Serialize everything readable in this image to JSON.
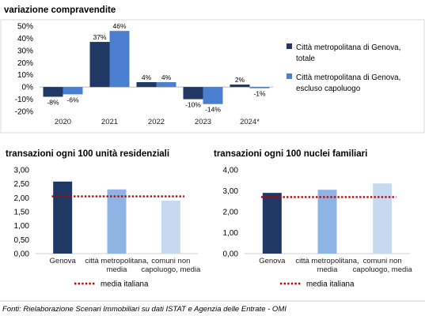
{
  "chart_data": [
    {
      "type": "bar",
      "title": "variazione compravendite",
      "categories": [
        "2020",
        "2021",
        "2022",
        "2023",
        "2024*"
      ],
      "ylim": [
        -20,
        50
      ],
      "yticks": [
        -20,
        -10,
        0,
        10,
        20,
        30,
        40,
        50
      ],
      "tick_suffix": "%",
      "series": [
        {
          "name": "Città metropolitana di Genova, totale",
          "values": [
            -8,
            37,
            4,
            -10,
            2
          ],
          "labels": [
            "-8%",
            "37%",
            "4%",
            "-10%",
            "2%"
          ],
          "color": "#1f3864"
        },
        {
          "name": "Città metropolitana di Genova, escluso capoluogo",
          "values": [
            -6,
            46,
            4,
            -14,
            -1
          ],
          "labels": [
            "-6%",
            "46%",
            "4%",
            "-14%",
            "-1%"
          ],
          "color": "#4a7ecf"
        }
      ],
      "legend_position": "right",
      "grid": false
    },
    {
      "type": "bar",
      "title": "transazioni ogni 100 unità residenziali",
      "categories": [
        "Genova",
        "città metropolitana, media",
        "comuni non capoluogo, media"
      ],
      "category_lines": [
        [
          "Genova"
        ],
        [
          "città metropolitana,",
          "media"
        ],
        [
          "comuni non",
          "capoluogo, media"
        ]
      ],
      "values": [
        2.58,
        2.3,
        1.9
      ],
      "colors": [
        "#1f3864",
        "#8db4e2",
        "#c5d9f1"
      ],
      "reference_line": {
        "name": "media italiana",
        "value": 2.05,
        "color": "#c00000"
      },
      "ylim": [
        0,
        3
      ],
      "yticks": [
        0,
        0.5,
        1,
        1.5,
        2,
        2.5,
        3
      ],
      "tick_labels": [
        "0,00",
        "0,50",
        "1,00",
        "1,50",
        "2,00",
        "2,50",
        "3,00"
      ],
      "legend_position": "bottom",
      "grid": false
    },
    {
      "type": "bar",
      "title": "transazioni ogni 100 nuclei familiari",
      "categories": [
        "Genova",
        "città metropolitana, media",
        "comuni non capoluogo, media"
      ],
      "category_lines": [
        [
          "Genova"
        ],
        [
          "città metropolitana,",
          "media"
        ],
        [
          "comuni non",
          "capoluogo, media"
        ]
      ],
      "values": [
        2.9,
        3.05,
        3.35
      ],
      "colors": [
        "#1f3864",
        "#8db4e2",
        "#c5d9f1"
      ],
      "reference_line": {
        "name": "media italiana",
        "value": 2.7,
        "color": "#c00000"
      },
      "ylim": [
        0,
        4
      ],
      "yticks": [
        0,
        1,
        2,
        3,
        4
      ],
      "tick_labels": [
        "0,00",
        "1,00",
        "2,00",
        "3,00",
        "4,00"
      ],
      "legend_position": "bottom",
      "grid": false
    }
  ],
  "source_note": "Fonti: Rielaborazione Scenari Immobiliari su dati ISTAT e Agenzia delle Entrate - OMI"
}
